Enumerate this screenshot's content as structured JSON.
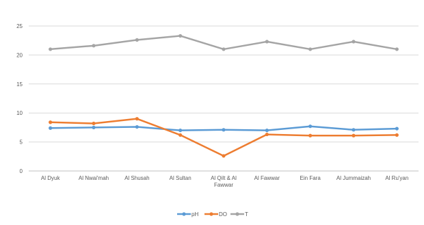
{
  "chart_data": {
    "type": "line",
    "categories": [
      "Al Dyuk",
      "Al Nwai'mah",
      "Al Shusah",
      "Al Sultan",
      "Al Qilt & Al Fawwar",
      "Al Fawwar",
      "Ein Fara",
      "Al Jummaizah",
      "Al Ru'yan"
    ],
    "category_lines": [
      [
        "Al Dyuk"
      ],
      [
        "Al Nwai'mah"
      ],
      [
        "Al Shusah"
      ],
      [
        "Al Sultan"
      ],
      [
        "Al Qilt & Al",
        "Fawwar"
      ],
      [
        "Al Fawwar"
      ],
      [
        "Ein Fara"
      ],
      [
        "Al Jummaizah"
      ],
      [
        "Al Ru'yan"
      ]
    ],
    "series": [
      {
        "name": "pH",
        "color": "#5B9BD5",
        "values": [
          7.4,
          7.5,
          7.6,
          7.0,
          7.1,
          7.0,
          7.7,
          7.1,
          7.3
        ]
      },
      {
        "name": "DO",
        "color": "#ED7D31",
        "values": [
          8.4,
          8.2,
          9.0,
          6.2,
          2.6,
          6.3,
          6.1,
          6.1,
          6.2
        ]
      },
      {
        "name": "T",
        "color": "#A5A5A5",
        "values": [
          21.0,
          21.6,
          22.6,
          23.3,
          21.0,
          22.3,
          21.0,
          22.3,
          21.0
        ]
      }
    ],
    "ylim": [
      0,
      25
    ],
    "yticks": [
      0,
      5,
      10,
      15,
      20,
      25
    ],
    "grid": true,
    "legend_position": "bottom"
  }
}
